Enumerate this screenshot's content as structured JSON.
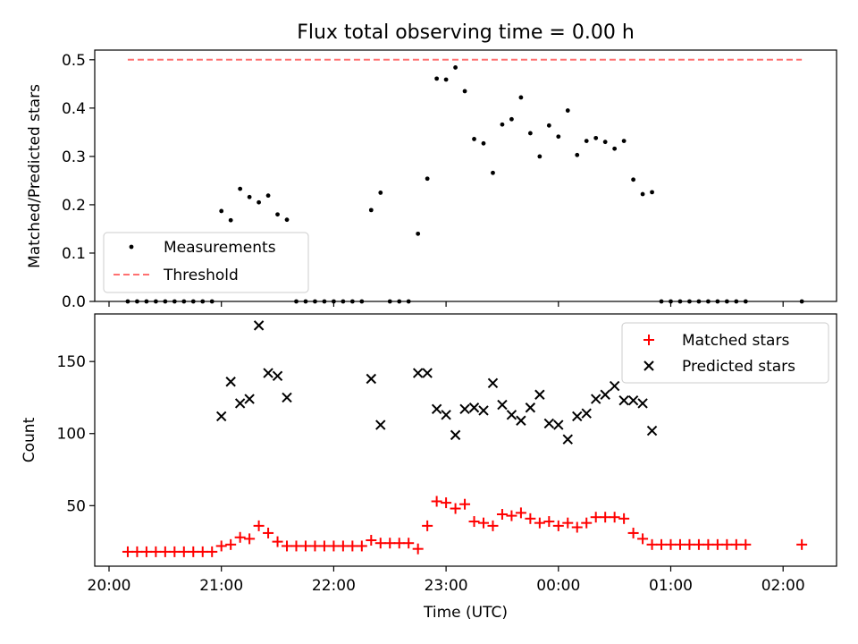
{
  "chart_data": [
    {
      "type": "scatter",
      "title": "Flux total observing time = 0.00 h",
      "xlabel": "",
      "ylabel": "Matched/Predicted stars",
      "ylim": [
        0,
        0.52
      ],
      "yticks": [
        "0.0",
        "0.1",
        "0.2",
        "0.3",
        "0.4",
        "0.5"
      ],
      "legend_position": "lower-left",
      "series": [
        {
          "name": "Measurements",
          "color": "#000000",
          "marker": "dot",
          "points": [
            [
              "20:10",
              0
            ],
            [
              "20:15",
              0
            ],
            [
              "20:20",
              0
            ],
            [
              "20:25",
              0
            ],
            [
              "20:30",
              0
            ],
            [
              "20:35",
              0
            ],
            [
              "20:40",
              0
            ],
            [
              "20:45",
              0
            ],
            [
              "20:50",
              0
            ],
            [
              "20:55",
              0
            ],
            [
              "21:00",
              0.187
            ],
            [
              "21:05",
              0.168
            ],
            [
              "21:10",
              0.233
            ],
            [
              "21:15",
              0.216
            ],
            [
              "21:20",
              0.205
            ],
            [
              "21:25",
              0.219
            ],
            [
              "21:30",
              0.18
            ],
            [
              "21:35",
              0.169
            ],
            [
              "21:40",
              0
            ],
            [
              "21:45",
              0
            ],
            [
              "21:50",
              0
            ],
            [
              "21:55",
              0
            ],
            [
              "22:00",
              0
            ],
            [
              "22:05",
              0
            ],
            [
              "22:10",
              0
            ],
            [
              "22:15",
              0
            ],
            [
              "22:20",
              0.189
            ],
            [
              "22:25",
              0.225
            ],
            [
              "22:30",
              0
            ],
            [
              "22:35",
              0
            ],
            [
              "22:40",
              0
            ],
            [
              "22:45",
              0.14
            ],
            [
              "22:50",
              0.254
            ],
            [
              "22:55",
              0.461
            ],
            [
              "23:00",
              0.459
            ],
            [
              "23:05",
              0.484
            ],
            [
              "23:10",
              0.435
            ],
            [
              "23:15",
              0.336
            ],
            [
              "23:20",
              0.327
            ],
            [
              "23:25",
              0.266
            ],
            [
              "23:30",
              0.366
            ],
            [
              "23:35",
              0.377
            ],
            [
              "23:40",
              0.422
            ],
            [
              "23:45",
              0.348
            ],
            [
              "23:50",
              0.3
            ],
            [
              "23:55",
              0.364
            ],
            [
              "00:00",
              0.341
            ],
            [
              "00:05",
              0.395
            ],
            [
              "00:10",
              0.303
            ],
            [
              "00:15",
              0.332
            ],
            [
              "00:20",
              0.338
            ],
            [
              "00:25",
              0.33
            ],
            [
              "00:30",
              0.316
            ],
            [
              "00:35",
              0.332
            ],
            [
              "00:40",
              0.252
            ],
            [
              "00:45",
              0.222
            ],
            [
              "00:50",
              0.226
            ],
            [
              "00:55",
              0
            ],
            [
              "01:00",
              0
            ],
            [
              "01:05",
              0
            ],
            [
              "01:10",
              0
            ],
            [
              "01:15",
              0
            ],
            [
              "01:20",
              0
            ],
            [
              "01:25",
              0
            ],
            [
              "01:30",
              0
            ],
            [
              "01:35",
              0
            ],
            [
              "01:40",
              0
            ],
            [
              "02:10",
              0
            ]
          ]
        },
        {
          "name": "Threshold",
          "color": "#ff7070",
          "style": "dashed",
          "points": [
            [
              "20:10",
              0.5
            ],
            [
              "02:10",
              0.5
            ]
          ]
        }
      ]
    },
    {
      "type": "scatter",
      "title": "",
      "xlabel": "Time (UTC)",
      "ylabel": "Count",
      "ylim": [
        8,
        183
      ],
      "yticks": [
        "50",
        "100",
        "150"
      ],
      "xticks": [
        "20:00",
        "21:00",
        "22:00",
        "23:00",
        "00:00",
        "01:00",
        "02:00"
      ],
      "legend_position": "top-right",
      "series": [
        {
          "name": "Matched stars",
          "color": "#ff0000",
          "marker": "plus",
          "points": [
            [
              "20:10",
              18
            ],
            [
              "20:15",
              18
            ],
            [
              "20:20",
              18
            ],
            [
              "20:25",
              18
            ],
            [
              "20:30",
              18
            ],
            [
              "20:35",
              18
            ],
            [
              "20:40",
              18
            ],
            [
              "20:45",
              18
            ],
            [
              "20:50",
              18
            ],
            [
              "20:55",
              18
            ],
            [
              "21:00",
              22
            ],
            [
              "21:05",
              23
            ],
            [
              "21:10",
              28
            ],
            [
              "21:15",
              27
            ],
            [
              "21:20",
              36
            ],
            [
              "21:25",
              31
            ],
            [
              "21:30",
              25
            ],
            [
              "21:35",
              22
            ],
            [
              "21:40",
              22
            ],
            [
              "21:45",
              22
            ],
            [
              "21:50",
              22
            ],
            [
              "21:55",
              22
            ],
            [
              "22:00",
              22
            ],
            [
              "22:05",
              22
            ],
            [
              "22:10",
              22
            ],
            [
              "22:15",
              22
            ],
            [
              "22:20",
              26
            ],
            [
              "22:25",
              24
            ],
            [
              "22:30",
              24
            ],
            [
              "22:35",
              24
            ],
            [
              "22:40",
              24
            ],
            [
              "22:45",
              20
            ],
            [
              "22:50",
              36
            ],
            [
              "22:55",
              53
            ],
            [
              "23:00",
              52
            ],
            [
              "23:05",
              48
            ],
            [
              "23:10",
              51
            ],
            [
              "23:15",
              39
            ],
            [
              "23:20",
              38
            ],
            [
              "23:25",
              36
            ],
            [
              "23:30",
              44
            ],
            [
              "23:35",
              43
            ],
            [
              "23:40",
              45
            ],
            [
              "23:45",
              41
            ],
            [
              "23:50",
              38
            ],
            [
              "23:55",
              39
            ],
            [
              "00:00",
              36
            ],
            [
              "00:05",
              38
            ],
            [
              "00:10",
              35
            ],
            [
              "00:15",
              38
            ],
            [
              "00:20",
              42
            ],
            [
              "00:25",
              42
            ],
            [
              "00:30",
              42
            ],
            [
              "00:35",
              41
            ],
            [
              "00:40",
              31
            ],
            [
              "00:45",
              27
            ],
            [
              "00:50",
              23
            ],
            [
              "00:55",
              23
            ],
            [
              "01:00",
              23
            ],
            [
              "01:05",
              23
            ],
            [
              "01:10",
              23
            ],
            [
              "01:15",
              23
            ],
            [
              "01:20",
              23
            ],
            [
              "01:25",
              23
            ],
            [
              "01:30",
              23
            ],
            [
              "01:35",
              23
            ],
            [
              "01:40",
              23
            ],
            [
              "02:10",
              23
            ]
          ]
        },
        {
          "name": "Predicted stars",
          "color": "#000000",
          "marker": "x",
          "points": [
            [
              "21:00",
              112
            ],
            [
              "21:05",
              136
            ],
            [
              "21:10",
              121
            ],
            [
              "21:15",
              124
            ],
            [
              "21:20",
              175
            ],
            [
              "21:25",
              142
            ],
            [
              "21:30",
              140
            ],
            [
              "21:35",
              125
            ],
            [
              "22:20",
              138
            ],
            [
              "22:25",
              106
            ],
            [
              "22:45",
              142
            ],
            [
              "22:50",
              142
            ],
            [
              "22:55",
              117
            ],
            [
              "23:00",
              113
            ],
            [
              "23:05",
              99
            ],
            [
              "23:10",
              117
            ],
            [
              "23:15",
              118
            ],
            [
              "23:20",
              116
            ],
            [
              "23:25",
              135
            ],
            [
              "23:30",
              120
            ],
            [
              "23:35",
              113
            ],
            [
              "23:40",
              109
            ],
            [
              "23:45",
              118
            ],
            [
              "23:50",
              127
            ],
            [
              "23:55",
              107
            ],
            [
              "00:00",
              106
            ],
            [
              "00:05",
              96
            ],
            [
              "00:10",
              112
            ],
            [
              "00:15",
              114
            ],
            [
              "00:20",
              124
            ],
            [
              "00:25",
              127
            ],
            [
              "00:30",
              133
            ],
            [
              "00:35",
              123
            ],
            [
              "00:40",
              123
            ],
            [
              "00:45",
              121
            ],
            [
              "00:50",
              102
            ]
          ]
        }
      ]
    }
  ]
}
